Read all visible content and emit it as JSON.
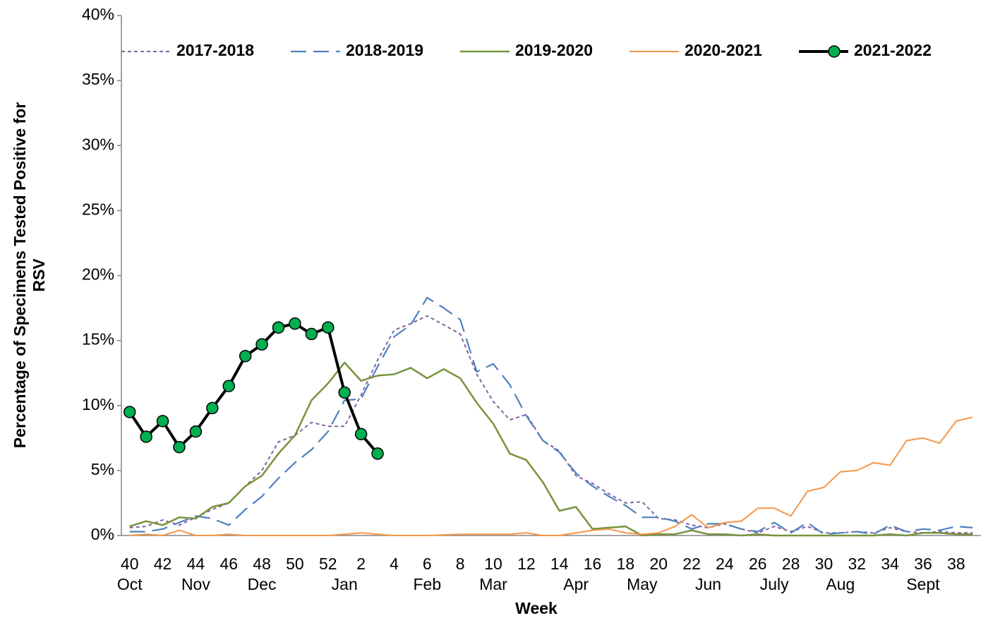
{
  "chart_data": {
    "type": "line",
    "ylabel": [
      "Percentage of Specimens  Tested Positive for",
      "RSV"
    ],
    "xlabel": "Week",
    "categories": [
      "40",
      null,
      "42",
      null,
      "44",
      null,
      "46",
      null,
      "48",
      null,
      "50",
      null,
      "52",
      null,
      "2",
      null,
      "4",
      null,
      "6",
      null,
      "8",
      null,
      "10",
      null,
      "12",
      null,
      "14",
      null,
      "16",
      null,
      "18",
      null,
      "20",
      null,
      "22",
      null,
      "24",
      null,
      "26",
      null,
      "28",
      null,
      "30",
      null,
      "32",
      null,
      "34",
      null,
      "36",
      null,
      "38",
      null
    ],
    "month_labels": [
      "Oct",
      null,
      null,
      null,
      "Nov",
      null,
      null,
      null,
      "Dec",
      null,
      null,
      null,
      null,
      "Jan",
      null,
      null,
      null,
      null,
      "Feb",
      null,
      null,
      null,
      "Mar",
      null,
      null,
      null,
      null,
      "Apr",
      null,
      null,
      null,
      "May",
      null,
      null,
      null,
      "Jun",
      null,
      null,
      null,
      "July",
      null,
      null,
      null,
      "Aug",
      null,
      null,
      null,
      null,
      "Sept",
      null,
      null,
      null
    ],
    "ylim": [
      0,
      40
    ],
    "yticks": [
      {
        "value": 0,
        "label": "0%"
      },
      {
        "value": 5,
        "label": "5%"
      },
      {
        "value": 10,
        "label": "10%"
      },
      {
        "value": 15,
        "label": "15%"
      },
      {
        "value": 20,
        "label": "20%"
      },
      {
        "value": 25,
        "label": "25%"
      },
      {
        "value": 30,
        "label": "30%"
      },
      {
        "value": 35,
        "label": "35%"
      },
      {
        "value": 40,
        "label": "40%"
      }
    ],
    "legend": "top",
    "series": [
      {
        "name": "2017-2018",
        "color": "#8064a2",
        "style": "dotted",
        "values": [
          0.6,
          0.7,
          1.2,
          0.8,
          1.4,
          2.0,
          2.5,
          3.8,
          5.0,
          7.2,
          7.7,
          8.7,
          8.4,
          8.4,
          10.8,
          13.5,
          15.8,
          16.3,
          16.9,
          16.2,
          15.5,
          12.4,
          10.3,
          8.9,
          9.3,
          7.3,
          6.5,
          4.6,
          4.0,
          3.2,
          2.5,
          2.6,
          1.3,
          1.2,
          0.8,
          0.6,
          0.9,
          0.5,
          0.2,
          0.7,
          0.3,
          0.7,
          0.2,
          0.2,
          0.3,
          0.2,
          0.6,
          0.3,
          0.2,
          0.3,
          0.2,
          0.2
        ]
      },
      {
        "name": "2018-2019",
        "color": "#4f81bd",
        "style": "dashed",
        "values": [
          0.3,
          0.3,
          0.5,
          1.0,
          1.5,
          1.3,
          0.8,
          2.0,
          3.0,
          4.4,
          5.6,
          6.6,
          8.0,
          10.4,
          10.5,
          13.0,
          15.3,
          16.2,
          18.3,
          17.5,
          16.6,
          12.6,
          13.2,
          11.6,
          9.2,
          7.3,
          6.4,
          4.8,
          3.8,
          3.0,
          2.3,
          1.4,
          1.4,
          1.1,
          0.5,
          0.9,
          0.9,
          0.5,
          0.3,
          1.0,
          0.2,
          1.0,
          0.1,
          0.2,
          0.3,
          0.1,
          0.8,
          0.3,
          0.5,
          0.4,
          0.7,
          0.6
        ]
      },
      {
        "name": "2019-2020",
        "color": "#77933c",
        "style": "solid",
        "values": [
          0.7,
          1.1,
          0.8,
          1.4,
          1.3,
          2.2,
          2.5,
          3.8,
          4.6,
          6.3,
          7.7,
          10.4,
          11.7,
          13.3,
          11.9,
          12.3,
          12.4,
          12.9,
          12.1,
          12.8,
          12.1,
          10.2,
          8.6,
          6.3,
          5.8,
          4.1,
          1.9,
          2.2,
          0.5,
          0.6,
          0.7,
          0.0,
          0.1,
          0.1,
          0.4,
          0.1,
          0.1,
          0.0,
          0.1,
          0.0,
          0.0,
          0.0,
          0.0,
          0.0,
          0.0,
          0.0,
          0.1,
          0.0,
          0.2,
          0.2,
          0.1,
          0.1
        ]
      },
      {
        "name": "2020-2021",
        "color": "#f79646",
        "style": "thin",
        "values": [
          0.0,
          0.1,
          0.0,
          0.4,
          0.0,
          0.0,
          0.1,
          0.0,
          0.0,
          0.0,
          0.0,
          0.0,
          0.0,
          0.1,
          0.2,
          0.1,
          0.0,
          0.0,
          0.0,
          0.05,
          0.1,
          0.1,
          0.1,
          0.1,
          0.2,
          0.0,
          0.0,
          0.2,
          0.4,
          0.5,
          0.2,
          0.1,
          0.2,
          0.7,
          1.6,
          0.6,
          1.0,
          1.1,
          2.1,
          2.1,
          1.5,
          3.4,
          3.7,
          4.9,
          5.0,
          5.6,
          5.4,
          7.3,
          7.5,
          7.1,
          8.8,
          9.1
        ]
      },
      {
        "name": "2021-2022",
        "color": "#000000",
        "marker_color": "#00b050",
        "style": "marker",
        "values": [
          9.5,
          7.6,
          8.8,
          6.8,
          8.0,
          9.8,
          11.5,
          13.8,
          14.7,
          16.0,
          16.3,
          15.5,
          16.0,
          11.0,
          7.8,
          6.3,
          null,
          null,
          null,
          null,
          null,
          null,
          null,
          null,
          null,
          null,
          null,
          null,
          null,
          null,
          null,
          null,
          null,
          null,
          null,
          null,
          null,
          null,
          null,
          null,
          null,
          null,
          null,
          null,
          null,
          null,
          null,
          null,
          null,
          null,
          null,
          null
        ]
      }
    ]
  }
}
